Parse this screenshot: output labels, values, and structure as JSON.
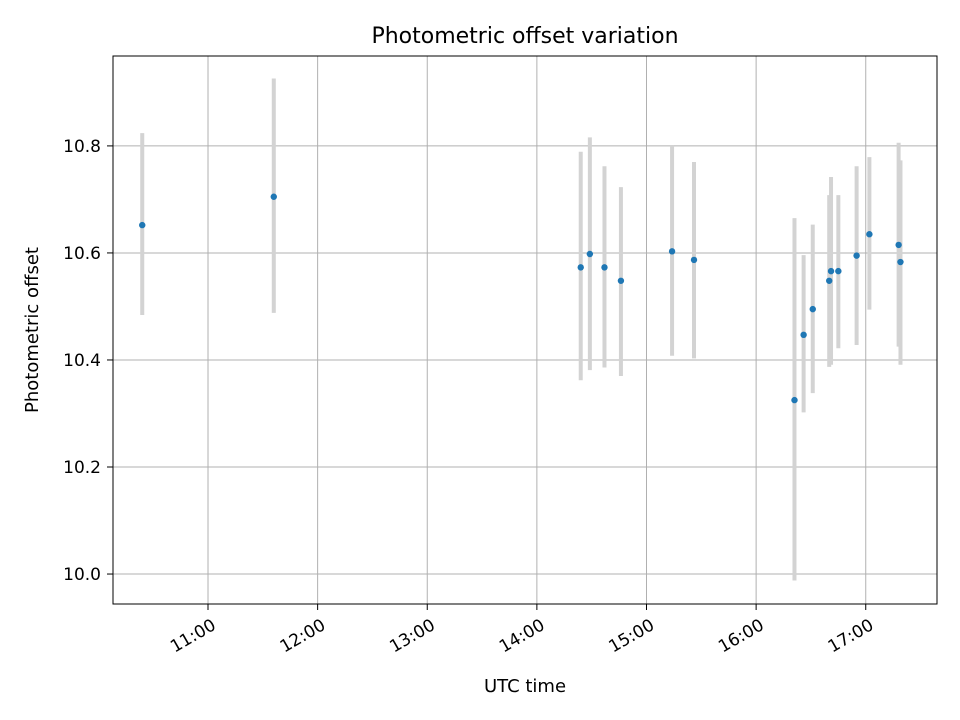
{
  "chart_data": {
    "type": "scatter",
    "title": "Photometric offset variation",
    "xlabel": "UTC time",
    "ylabel": "Photometric offset",
    "x_axis_type": "time",
    "xlim": [
      "10:08",
      "17:39"
    ],
    "ylim": [
      9.944,
      10.968
    ],
    "xticks": [
      "11:00",
      "12:00",
      "13:00",
      "14:00",
      "15:00",
      "16:00",
      "17:00"
    ],
    "yticks": [
      10.0,
      10.2,
      10.4,
      10.6,
      10.8
    ],
    "ytick_labels": [
      "10.0",
      "10.2",
      "10.4",
      "10.6",
      "10.8"
    ],
    "grid": true,
    "marker_color": "#1f77b4",
    "errorbar_color": "#d3d3d3",
    "points": [
      {
        "t": "10:24",
        "y": 10.652,
        "lo": 10.484,
        "hi": 10.824
      },
      {
        "t": "11:36",
        "y": 10.705,
        "lo": 10.488,
        "hi": 10.926
      },
      {
        "t": "14:24",
        "y": 10.573,
        "lo": 10.362,
        "hi": 10.789
      },
      {
        "t": "14:29",
        "y": 10.598,
        "lo": 10.381,
        "hi": 10.816
      },
      {
        "t": "14:37",
        "y": 10.573,
        "lo": 10.386,
        "hi": 10.762
      },
      {
        "t": "14:46",
        "y": 10.548,
        "lo": 10.37,
        "hi": 10.723
      },
      {
        "t": "15:14",
        "y": 10.603,
        "lo": 10.408,
        "hi": 10.8
      },
      {
        "t": "15:26",
        "y": 10.587,
        "lo": 10.403,
        "hi": 10.77
      },
      {
        "t": "16:21",
        "y": 10.325,
        "lo": 9.988,
        "hi": 10.665
      },
      {
        "t": "16:26",
        "y": 10.447,
        "lo": 10.302,
        "hi": 10.596
      },
      {
        "t": "16:31",
        "y": 10.495,
        "lo": 10.338,
        "hi": 10.653
      },
      {
        "t": "16:40",
        "y": 10.548,
        "lo": 10.387,
        "hi": 10.708
      },
      {
        "t": "16:41",
        "y": 10.566,
        "lo": 10.391,
        "hi": 10.742
      },
      {
        "t": "16:45",
        "y": 10.566,
        "lo": 10.422,
        "hi": 10.708
      },
      {
        "t": "16:55",
        "y": 10.595,
        "lo": 10.428,
        "hi": 10.762
      },
      {
        "t": "17:02",
        "y": 10.635,
        "lo": 10.494,
        "hi": 10.779
      },
      {
        "t": "17:18",
        "y": 10.615,
        "lo": 10.425,
        "hi": 10.806
      },
      {
        "t": "17:19",
        "y": 10.583,
        "lo": 10.391,
        "hi": 10.773
      }
    ]
  }
}
